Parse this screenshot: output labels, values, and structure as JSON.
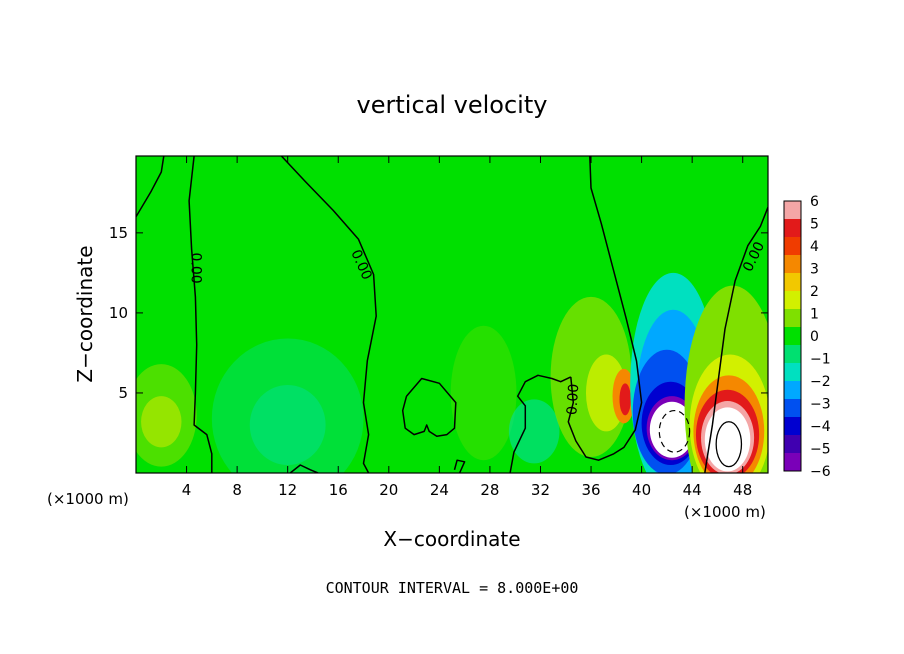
{
  "chart_data": {
    "type": "heatmap",
    "title": "vertical velocity",
    "xlabel": "X−coordinate",
    "ylabel": "Z−coordinate",
    "x_unit_label": "(×1000 m)",
    "z_unit_label": "(×1000 m)",
    "xlim": [
      0,
      50
    ],
    "zlim": [
      0,
      19.8
    ],
    "x_ticks": [
      4,
      8,
      12,
      16,
      20,
      24,
      28,
      32,
      36,
      40,
      44,
      48
    ],
    "z_ticks": [
      5,
      10,
      15
    ],
    "colorbar": {
      "ticks": [
        "6",
        "5",
        "4",
        "3",
        "2",
        "1",
        "0",
        "−1",
        "−2",
        "−3",
        "−4",
        "−5",
        "−6"
      ],
      "colors": [
        "#f4a6a6",
        "#e21a1a",
        "#f03c00",
        "#f58800",
        "#f2c800",
        "#d2f000",
        "#7fe000",
        "#00e000",
        "#00e070",
        "#00e0c0",
        "#00a8ff",
        "#0050f0",
        "#0000d0",
        "#4000b0",
        "#7a00b8"
      ]
    },
    "contour_label": "0.00",
    "contour_interval_text": "CONTOUR INTERVAL = 8.000E+00",
    "features": [
      {
        "kind": "downdraft",
        "x": 42.5,
        "z": 2.6,
        "min": -6
      },
      {
        "kind": "updraft",
        "x": 46.8,
        "z": 2.0,
        "max": 6
      }
    ]
  }
}
